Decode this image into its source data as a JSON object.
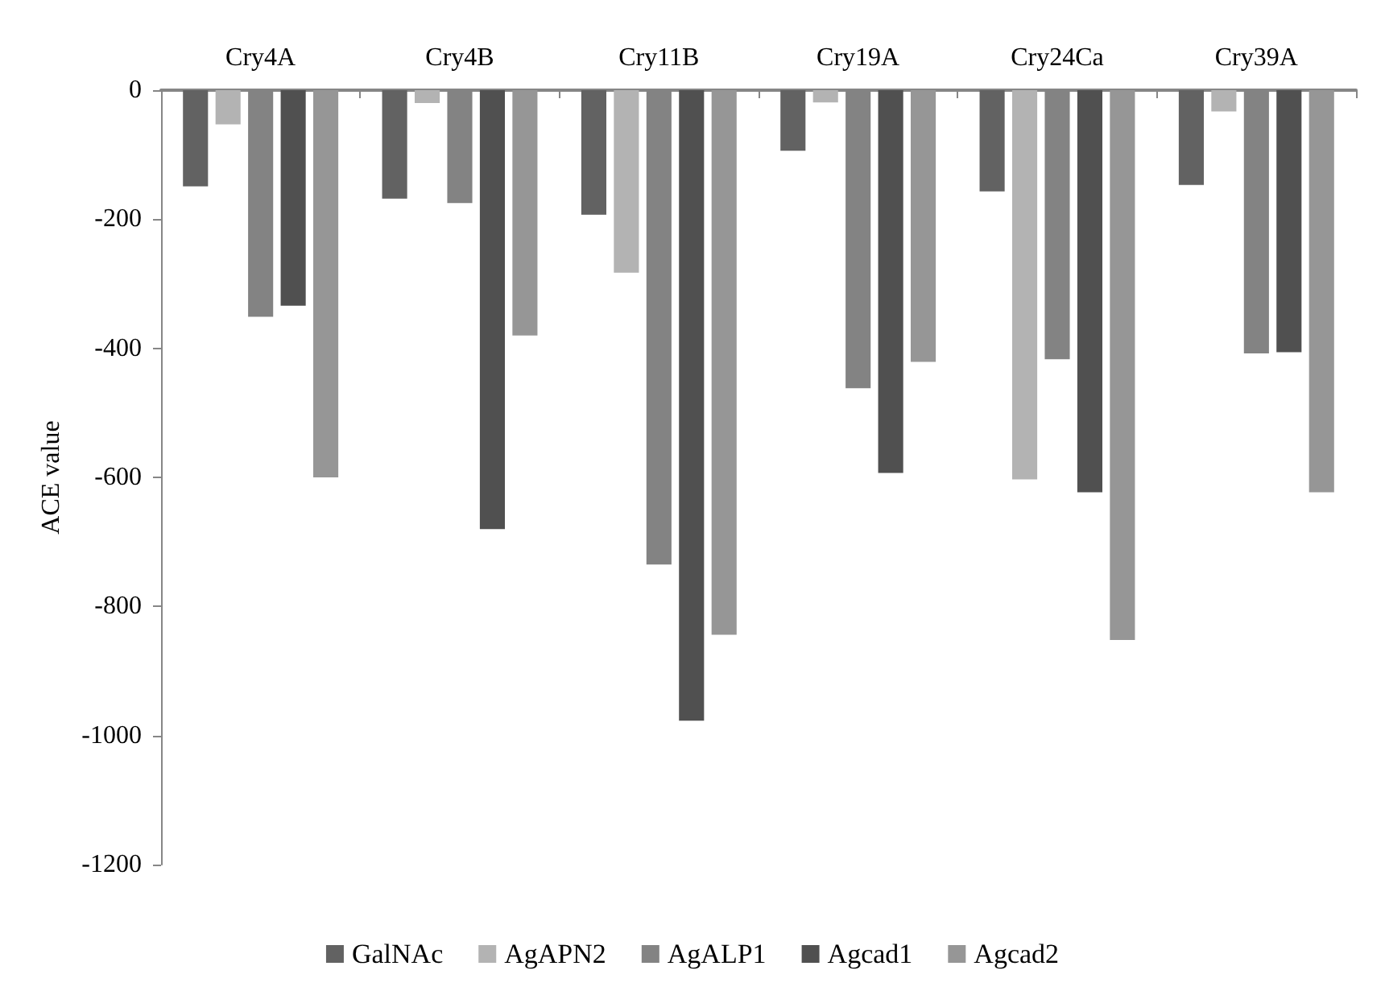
{
  "chart_data": {
    "type": "bar",
    "ylabel": "ACE value",
    "categories": [
      "Cry4A",
      "Cry4B",
      "Cry11B",
      "Cry19A",
      "Cry24Ca",
      "Cry39A"
    ],
    "series": [
      {
        "name": "GalNAc",
        "color": "#626262",
        "values": [
          -149,
          -168,
          -193,
          -94,
          -157,
          -147
        ]
      },
      {
        "name": "AgAPN2",
        "color": "#b3b3b3",
        "values": [
          -53,
          -20,
          -283,
          -19,
          -603,
          -33
        ]
      },
      {
        "name": "AgALP1",
        "color": "#838383",
        "values": [
          -351,
          -175,
          -735,
          -462,
          -417,
          -408
        ]
      },
      {
        "name": "Agcad1",
        "color": "#505050",
        "values": [
          -334,
          -680,
          -977,
          -593,
          -623,
          -406
        ]
      },
      {
        "name": "Agcad2",
        "color": "#969696",
        "values": [
          -600,
          -380,
          -844,
          -421,
          -852,
          -623
        ]
      }
    ],
    "ylim": [
      -1200,
      0
    ],
    "yticks": [
      -1200,
      -1000,
      -800,
      -600,
      -400,
      -200,
      0
    ],
    "grid": false,
    "legend": "bottom"
  }
}
